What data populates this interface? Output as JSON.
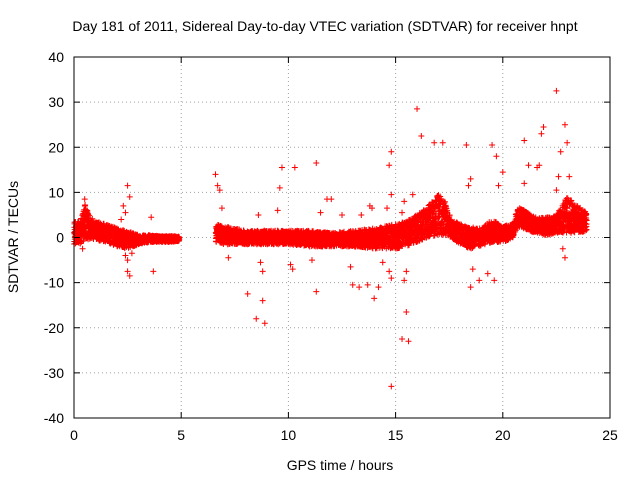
{
  "chart_data": {
    "type": "scatter",
    "title": "Day 181 of 2011, Sidereal Day-to-day VTEC variation (SDTVAR) for receiver hnpt",
    "xlabel": "GPS time / hours",
    "ylabel": "SDTVAR / TECUs",
    "xlim": [
      0,
      25
    ],
    "ylim": [
      -40,
      40
    ],
    "xticks": [
      0,
      5,
      10,
      15,
      20,
      25
    ],
    "yticks": [
      -40,
      -30,
      -20,
      -10,
      0,
      10,
      20,
      30,
      40
    ],
    "xtick_labels": [
      "0",
      "5",
      "10",
      "15",
      "20",
      "25"
    ],
    "ytick_labels": [
      "-40",
      "-30",
      "-20",
      "-10",
      "0",
      "10",
      "20",
      "30",
      "40"
    ],
    "grid": true,
    "marker": "+",
    "marker_color": "#ff0000",
    "data_gap_hours": [
      4.9,
      6.6
    ],
    "dense_band": [
      {
        "x": 0.0,
        "lo": -1.5,
        "hi": 3.5
      },
      {
        "x": 0.3,
        "lo": -1.5,
        "hi": 3.5
      },
      {
        "x": 0.5,
        "lo": -0.5,
        "hi": 7.5
      },
      {
        "x": 0.7,
        "lo": -0.5,
        "hi": 5.0
      },
      {
        "x": 1.0,
        "lo": -0.5,
        "hi": 3.5
      },
      {
        "x": 1.5,
        "lo": -1.0,
        "hi": 3.0
      },
      {
        "x": 2.0,
        "lo": -2.0,
        "hi": 2.0
      },
      {
        "x": 2.5,
        "lo": -2.5,
        "hi": 1.5
      },
      {
        "x": 3.0,
        "lo": -1.5,
        "hi": 0.5
      },
      {
        "x": 3.5,
        "lo": -1.0,
        "hi": 0.5
      },
      {
        "x": 4.0,
        "lo": -1.0,
        "hi": 0.3
      },
      {
        "x": 4.5,
        "lo": -1.0,
        "hi": 0.3
      },
      {
        "x": 4.9,
        "lo": -0.8,
        "hi": 0.2
      },
      {
        "x": 6.6,
        "lo": -1.0,
        "hi": 3.0
      },
      {
        "x": 7.0,
        "lo": -1.5,
        "hi": 2.5
      },
      {
        "x": 8.0,
        "lo": -1.5,
        "hi": 1.5
      },
      {
        "x": 9.0,
        "lo": -1.5,
        "hi": 1.5
      },
      {
        "x": 10.0,
        "lo": -1.5,
        "hi": 1.5
      },
      {
        "x": 11.0,
        "lo": -2.0,
        "hi": 1.5
      },
      {
        "x": 12.0,
        "lo": -2.0,
        "hi": 1.0
      },
      {
        "x": 13.0,
        "lo": -2.0,
        "hi": 1.5
      },
      {
        "x": 14.0,
        "lo": -2.5,
        "hi": 2.0
      },
      {
        "x": 15.0,
        "lo": -2.5,
        "hi": 3.0
      },
      {
        "x": 15.5,
        "lo": -2.0,
        "hi": 3.5
      },
      {
        "x": 16.0,
        "lo": -1.0,
        "hi": 5.0
      },
      {
        "x": 16.5,
        "lo": 0.0,
        "hi": 7.0
      },
      {
        "x": 17.0,
        "lo": 0.5,
        "hi": 9.5
      },
      {
        "x": 17.3,
        "lo": 0.5,
        "hi": 8.0
      },
      {
        "x": 17.6,
        "lo": 0.0,
        "hi": 4.0
      },
      {
        "x": 18.0,
        "lo": -1.5,
        "hi": 3.0
      },
      {
        "x": 18.5,
        "lo": -2.5,
        "hi": 2.5
      },
      {
        "x": 19.0,
        "lo": -2.0,
        "hi": 2.0
      },
      {
        "x": 19.5,
        "lo": -1.0,
        "hi": 4.0
      },
      {
        "x": 20.0,
        "lo": -1.0,
        "hi": 2.5
      },
      {
        "x": 20.5,
        "lo": 0.0,
        "hi": 3.0
      },
      {
        "x": 20.7,
        "lo": 2.5,
        "hi": 7.0
      },
      {
        "x": 21.0,
        "lo": 2.0,
        "hi": 6.0
      },
      {
        "x": 21.5,
        "lo": 1.0,
        "hi": 4.5
      },
      {
        "x": 22.0,
        "lo": 0.5,
        "hi": 4.5
      },
      {
        "x": 22.5,
        "lo": 1.0,
        "hi": 5.0
      },
      {
        "x": 23.0,
        "lo": 1.0,
        "hi": 9.0
      },
      {
        "x": 23.5,
        "lo": 1.0,
        "hi": 7.0
      },
      {
        "x": 23.9,
        "lo": 1.5,
        "hi": 5.5
      }
    ],
    "outliers": [
      [
        0.5,
        8.5
      ],
      [
        0.4,
        -2.5
      ],
      [
        2.2,
        4.0
      ],
      [
        2.3,
        7.0
      ],
      [
        2.4,
        5.5
      ],
      [
        2.5,
        11.5
      ],
      [
        2.6,
        9.0
      ],
      [
        2.5,
        -5.0
      ],
      [
        2.5,
        -7.5
      ],
      [
        2.6,
        -8.5
      ],
      [
        2.4,
        -4.0
      ],
      [
        2.7,
        -3.5
      ],
      [
        3.6,
        4.5
      ],
      [
        3.7,
        -7.5
      ],
      [
        6.6,
        14.0
      ],
      [
        6.7,
        11.5
      ],
      [
        6.8,
        10.5
      ],
      [
        6.9,
        6.5
      ],
      [
        7.2,
        -4.5
      ],
      [
        8.1,
        -12.5
      ],
      [
        8.5,
        -18.0
      ],
      [
        8.9,
        -19.0
      ],
      [
        8.8,
        -14.0
      ],
      [
        8.6,
        5.0
      ],
      [
        8.7,
        -5.5
      ],
      [
        8.8,
        -7.5
      ],
      [
        9.6,
        11.0
      ],
      [
        9.7,
        15.5
      ],
      [
        9.5,
        6.0
      ],
      [
        10.3,
        15.5
      ],
      [
        10.1,
        -6.0
      ],
      [
        10.2,
        -7.0
      ],
      [
        11.3,
        16.5
      ],
      [
        11.3,
        -12.0
      ],
      [
        11.1,
        -5.0
      ],
      [
        11.8,
        8.5
      ],
      [
        12.0,
        8.5
      ],
      [
        11.5,
        5.5
      ],
      [
        12.5,
        5.0
      ],
      [
        12.9,
        -6.5
      ],
      [
        13.0,
        -10.5
      ],
      [
        13.3,
        -11.0
      ],
      [
        13.4,
        5.0
      ],
      [
        13.7,
        -10.5
      ],
      [
        13.8,
        7.0
      ],
      [
        13.9,
        6.5
      ],
      [
        14.0,
        -13.5
      ],
      [
        14.2,
        -11.0
      ],
      [
        14.4,
        -5.5
      ],
      [
        14.6,
        6.5
      ],
      [
        14.8,
        19.0
      ],
      [
        14.7,
        16.0
      ],
      [
        14.8,
        9.5
      ],
      [
        14.7,
        -7.5
      ],
      [
        14.8,
        -9.0
      ],
      [
        14.8,
        -33.0
      ],
      [
        15.3,
        -22.5
      ],
      [
        15.5,
        -16.5
      ],
      [
        15.6,
        -23.0
      ],
      [
        15.8,
        9.5
      ],
      [
        15.4,
        8.0
      ],
      [
        15.3,
        5.5
      ],
      [
        15.5,
        -7.5
      ],
      [
        15.4,
        -9.5
      ],
      [
        16.0,
        28.5
      ],
      [
        16.2,
        22.5
      ],
      [
        16.8,
        21.0
      ],
      [
        17.2,
        21.0
      ],
      [
        18.3,
        20.5
      ],
      [
        18.5,
        13.0
      ],
      [
        18.4,
        11.5
      ],
      [
        18.6,
        -7.0
      ],
      [
        18.5,
        -11.0
      ],
      [
        18.9,
        -9.5
      ],
      [
        19.3,
        -8.0
      ],
      [
        19.5,
        20.5
      ],
      [
        19.7,
        18.0
      ],
      [
        19.8,
        11.5
      ],
      [
        19.6,
        -9.5
      ],
      [
        20.0,
        14.5
      ],
      [
        21.0,
        21.5
      ],
      [
        21.2,
        16.0
      ],
      [
        21.0,
        12.0
      ],
      [
        21.6,
        15.5
      ],
      [
        21.9,
        24.5
      ],
      [
        21.8,
        23.0
      ],
      [
        21.7,
        16.0
      ],
      [
        22.5,
        32.5
      ],
      [
        22.7,
        19.0
      ],
      [
        22.9,
        25.0
      ],
      [
        23.0,
        21.0
      ],
      [
        23.1,
        13.5
      ],
      [
        22.6,
        13.5
      ],
      [
        22.5,
        10.5
      ],
      [
        22.8,
        -2.5
      ],
      [
        22.9,
        -4.5
      ]
    ]
  }
}
